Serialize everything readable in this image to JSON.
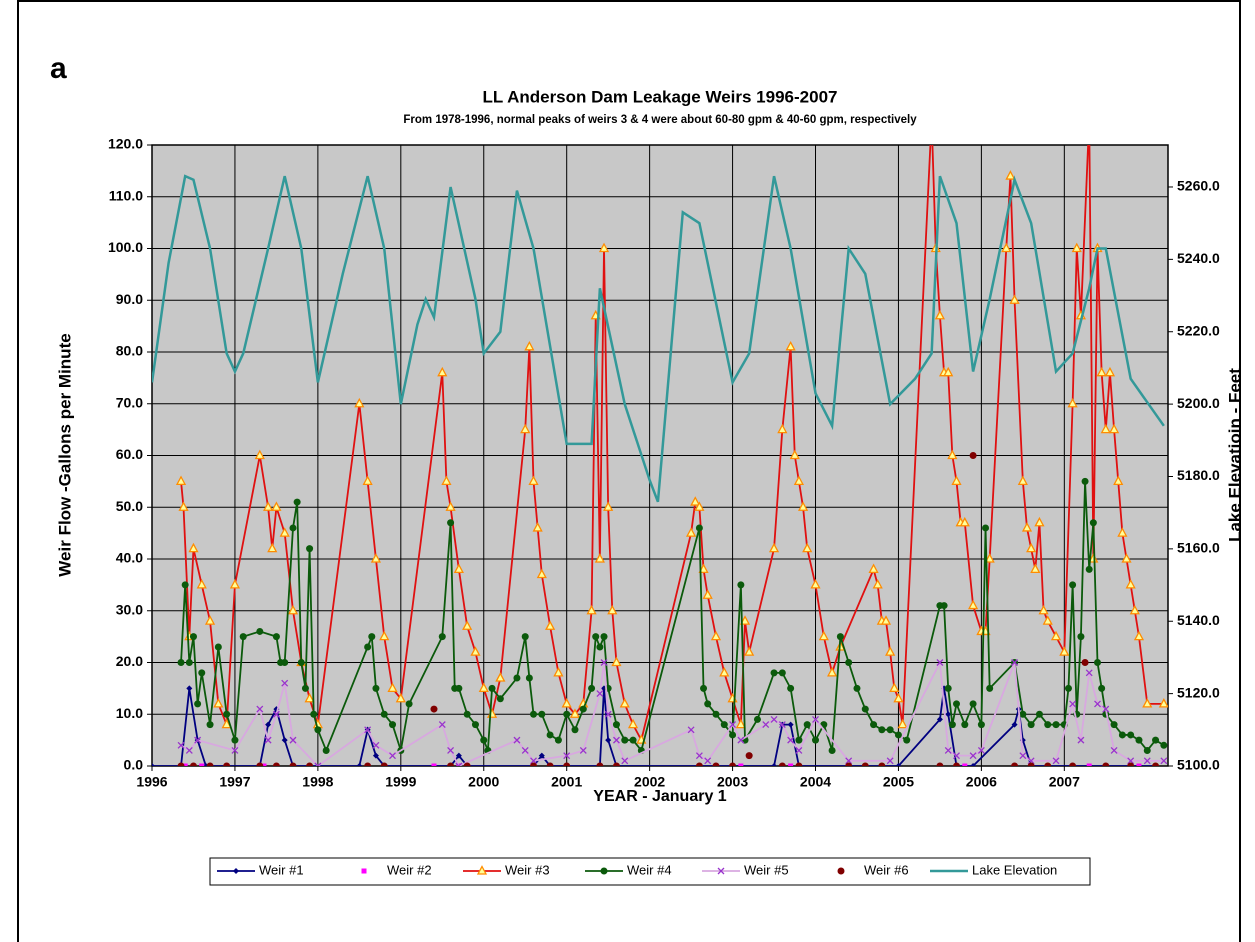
{
  "panel_label": "a",
  "chart_data": {
    "type": "line",
    "title": "LL Anderson Dam Leakage Weirs 1996-2007",
    "subtitle": "From 1978-1996, normal peaks of weirs 3 & 4 were about 60-80 gpm & 40-60 gpm, respectively",
    "x_label": "YEAR - January 1",
    "y_label": "Weir Flow -Gallons per Minute",
    "y2_label": "Lake Elevatioin - Feet",
    "xlim": [
      1996,
      2008.25
    ],
    "xticks": [
      1996,
      1997,
      1998,
      1999,
      2000,
      2001,
      2002,
      2003,
      2004,
      2005,
      2006,
      2007
    ],
    "ylim": [
      0,
      120
    ],
    "yticks": [
      {
        "value": 0,
        "label": "0.0"
      },
      {
        "value": 10,
        "label": "10.0"
      },
      {
        "value": 20,
        "label": "20.0"
      },
      {
        "value": 30,
        "label": "30.0"
      },
      {
        "value": 40,
        "label": "40.0"
      },
      {
        "value": 50,
        "label": "50.0"
      },
      {
        "value": 60,
        "label": "60.0"
      },
      {
        "value": 70,
        "label": "70.0"
      },
      {
        "value": 80,
        "label": "80.0"
      },
      {
        "value": 90,
        "label": "90.0"
      },
      {
        "value": 100,
        "label": "100.0"
      },
      {
        "value": 110,
        "label": "110.0"
      },
      {
        "value": 120,
        "label": "120.0"
      }
    ],
    "y2lim": [
      5100,
      5271.6
    ],
    "y2ticks": [
      {
        "value": 5100,
        "label": "5100.0"
      },
      {
        "value": 5120,
        "label": "5120.0"
      },
      {
        "value": 5140,
        "label": "5140.0"
      },
      {
        "value": 5160,
        "label": "5160.0"
      },
      {
        "value": 5180,
        "label": "5180.0"
      },
      {
        "value": 5200,
        "label": "5200.0"
      },
      {
        "value": 5220,
        "label": "5220.0"
      },
      {
        "value": 5240,
        "label": "5240.0"
      },
      {
        "value": 5260,
        "label": "5260.0"
      }
    ],
    "grid": true,
    "legend": "bottom",
    "series": [
      {
        "name": "Weir #1",
        "color": "#000080",
        "marker": "diamond",
        "line": true,
        "x": [
          1996.0,
          1996.35,
          1996.45,
          1996.55,
          1996.65,
          1997.3,
          1997.4,
          1997.5,
          1997.6,
          1997.7,
          1998.5,
          1998.6,
          1998.7,
          1998.8,
          1999.6,
          1999.7,
          1999.8,
          2000.6,
          2000.7,
          2000.8,
          2001.4,
          2001.45,
          2001.5,
          2001.6,
          2003.5,
          2003.6,
          2003.7,
          2003.8,
          2005.0,
          2005.5,
          2005.55,
          2005.6,
          2005.7,
          2005.9,
          2006.4,
          2006.45,
          2006.5,
          2006.6,
          2008.1
        ],
        "values": [
          0,
          0,
          15,
          5,
          0,
          0,
          8,
          11,
          5,
          0,
          0,
          7,
          2,
          0,
          0,
          2,
          0,
          0,
          2,
          0,
          0,
          15,
          5,
          0,
          0,
          8,
          8,
          0,
          0,
          9,
          15,
          10,
          0,
          0,
          8,
          11,
          5,
          0,
          0
        ]
      },
      {
        "name": "Weir #2",
        "color": "#ff00ff",
        "marker": "square",
        "line": false,
        "x": [
          1996.4,
          1996.6,
          1997.35,
          1998.6,
          1999.4,
          1999.7,
          2000.6,
          2001.4,
          2002.6,
          2003.1,
          2003.7,
          2004.6,
          2005.5,
          2005.8,
          2006.4,
          2006.8,
          2007.3,
          2007.9
        ],
        "values": [
          0,
          0,
          0,
          0,
          0,
          0,
          0,
          0,
          0,
          0,
          0,
          0,
          0,
          0,
          0,
          0,
          0,
          0
        ]
      },
      {
        "name": "Weir #3",
        "color": "#e01010",
        "marker_color": "#ff8c00",
        "marker": "triangle",
        "line": true,
        "x": [
          1996.35,
          1996.38,
          1996.45,
          1996.5,
          1996.6,
          1996.7,
          1996.8,
          1996.9,
          1997.0,
          1997.3,
          1997.4,
          1997.45,
          1997.5,
          1997.6,
          1997.7,
          1997.8,
          1997.9,
          1998.0,
          1998.5,
          1998.6,
          1998.7,
          1998.8,
          1998.9,
          1999.0,
          1999.5,
          1999.55,
          1999.6,
          1999.7,
          1999.8,
          1999.9,
          2000.0,
          2000.1,
          2000.2,
          2000.5,
          2000.55,
          2000.6,
          2000.65,
          2000.7,
          2000.8,
          2000.9,
          2001.0,
          2001.1,
          2001.2,
          2001.3,
          2001.35,
          2001.4,
          2001.45,
          2001.5,
          2001.55,
          2001.6,
          2001.7,
          2001.8,
          2001.9,
          2002.5,
          2002.55,
          2002.6,
          2002.65,
          2002.7,
          2002.8,
          2002.9,
          2003.0,
          2003.1,
          2003.15,
          2003.2,
          2003.5,
          2003.6,
          2003.7,
          2003.75,
          2003.8,
          2003.85,
          2003.9,
          2004.0,
          2004.1,
          2004.2,
          2004.3,
          2004.7,
          2004.75,
          2004.8,
          2004.85,
          2004.9,
          2004.95,
          2005.0,
          2005.05,
          2005.4,
          2005.45,
          2005.5,
          2005.55,
          2005.6,
          2005.65,
          2005.7,
          2005.75,
          2005.8,
          2005.9,
          2006.0,
          2006.05,
          2006.1,
          2006.3,
          2006.35,
          2006.4,
          2006.5,
          2006.55,
          2006.6,
          2006.65,
          2006.7,
          2006.75,
          2006.8,
          2006.9,
          2007.0,
          2007.1,
          2007.15,
          2007.2,
          2007.3,
          2007.35,
          2007.4,
          2007.45,
          2007.5,
          2007.55,
          2007.6,
          2007.65,
          2007.7,
          2007.75,
          2007.8,
          2007.85,
          2007.9,
          2008.0,
          2008.2
        ],
        "values": [
          55,
          50,
          25,
          42,
          35,
          28,
          12,
          8,
          35,
          60,
          50,
          42,
          50,
          45,
          30,
          20,
          13,
          8,
          70,
          55,
          40,
          25,
          15,
          13,
          76,
          55,
          50,
          38,
          27,
          22,
          15,
          10,
          17,
          65,
          81,
          55,
          46,
          37,
          27,
          18,
          12,
          10,
          12,
          30,
          87,
          40,
          100,
          50,
          30,
          20,
          12,
          8,
          5,
          45,
          51,
          50,
          38,
          33,
          25,
          18,
          13,
          8,
          28,
          22,
          42,
          65,
          81,
          60,
          55,
          50,
          42,
          35,
          25,
          18,
          23,
          38,
          35,
          28,
          28,
          22,
          15,
          13,
          8,
          125,
          100,
          87,
          76,
          76,
          60,
          55,
          47,
          47,
          31,
          26,
          26,
          40,
          100,
          114,
          90,
          55,
          46,
          42,
          38,
          47,
          30,
          28,
          25,
          22,
          70,
          100,
          87,
          125,
          40,
          100,
          76,
          65,
          76,
          65,
          55,
          45,
          40,
          35,
          30,
          25,
          12,
          12
        ]
      },
      {
        "name": "Weir #4",
        "color": "#0b5a0b",
        "marker": "circle",
        "line": true,
        "x": [
          1996.35,
          1996.4,
          1996.45,
          1996.5,
          1996.55,
          1996.6,
          1996.7,
          1996.8,
          1996.9,
          1997.0,
          1997.1,
          1997.3,
          1997.5,
          1997.55,
          1997.6,
          1997.7,
          1997.75,
          1997.8,
          1997.85,
          1997.9,
          1997.95,
          1998.0,
          1998.1,
          1998.6,
          1998.65,
          1998.7,
          1998.8,
          1998.9,
          1999.0,
          1999.1,
          1999.5,
          1999.6,
          1999.65,
          1999.7,
          1999.8,
          1999.9,
          2000.0,
          2000.05,
          2000.1,
          2000.2,
          2000.4,
          2000.5,
          2000.55,
          2000.6,
          2000.7,
          2000.8,
          2000.9,
          2001.0,
          2001.1,
          2001.2,
          2001.3,
          2001.35,
          2001.4,
          2001.45,
          2001.5,
          2001.6,
          2001.7,
          2001.8,
          2001.9,
          2002.6,
          2002.65,
          2002.7,
          2002.8,
          2002.9,
          2003.0,
          2003.1,
          2003.15,
          2003.3,
          2003.5,
          2003.6,
          2003.7,
          2003.8,
          2003.9,
          2004.0,
          2004.1,
          2004.2,
          2004.3,
          2004.4,
          2004.5,
          2004.6,
          2004.7,
          2004.8,
          2004.9,
          2005.0,
          2005.1,
          2005.5,
          2005.55,
          2005.6,
          2005.65,
          2005.7,
          2005.8,
          2005.9,
          2006.0,
          2006.05,
          2006.1,
          2006.4,
          2006.5,
          2006.6,
          2006.7,
          2006.8,
          2006.9,
          2007.0,
          2007.05,
          2007.1,
          2007.15,
          2007.2,
          2007.25,
          2007.3,
          2007.35,
          2007.4,
          2007.45,
          2007.5,
          2007.6,
          2007.7,
          2007.8,
          2007.9,
          2008.0,
          2008.1,
          2008.2
        ],
        "values": [
          20,
          35,
          20,
          25,
          12,
          18,
          8,
          23,
          10,
          5,
          25,
          26,
          25,
          20,
          20,
          46,
          51,
          20,
          15,
          42,
          10,
          7,
          3,
          23,
          25,
          15,
          10,
          8,
          3,
          12,
          25,
          47,
          15,
          15,
          10,
          8,
          5,
          3,
          15,
          13,
          17,
          25,
          17,
          10,
          10,
          6,
          5,
          10,
          7,
          11,
          15,
          25,
          23,
          25,
          15,
          8,
          5,
          5,
          3,
          46,
          15,
          12,
          10,
          8,
          6,
          35,
          5,
          9,
          18,
          18,
          15,
          5,
          8,
          5,
          8,
          3,
          25,
          20,
          15,
          11,
          8,
          7,
          7,
          6,
          5,
          31,
          31,
          15,
          8,
          12,
          8,
          12,
          8,
          46,
          15,
          20,
          10,
          8,
          10,
          8,
          8,
          8,
          15,
          35,
          10,
          25,
          55,
          38,
          47,
          20,
          15,
          10,
          8,
          6,
          6,
          5,
          3,
          5,
          4
        ]
      },
      {
        "name": "Weir #5",
        "color": "#d8a8e0",
        "marker_color": "#9933cc",
        "marker": "x",
        "line": true,
        "x": [
          1996.35,
          1996.45,
          1996.55,
          1997.0,
          1997.3,
          1997.4,
          1997.5,
          1997.6,
          1997.7,
          1998.0,
          1998.6,
          1998.7,
          1998.9,
          1999.5,
          1999.6,
          1999.7,
          2000.4,
          2000.5,
          2000.6,
          2001.0,
          2001.2,
          2001.4,
          2001.45,
          2001.5,
          2001.6,
          2001.7,
          2002.5,
          2002.6,
          2002.7,
          2003.0,
          2003.1,
          2003.4,
          2003.5,
          2003.6,
          2003.7,
          2003.8,
          2004.0,
          2004.4,
          2004.9,
          2005.5,
          2005.6,
          2005.7,
          2005.9,
          2006.0,
          2006.4,
          2006.5,
          2006.6,
          2006.9,
          2007.1,
          2007.2,
          2007.3,
          2007.4,
          2007.5,
          2007.6,
          2007.8,
          2008.0,
          2008.2
        ],
        "values": [
          4,
          3,
          5,
          3,
          11,
          5,
          10,
          16,
          5,
          0,
          7,
          4,
          2,
          8,
          3,
          0,
          5,
          3,
          1,
          2,
          3,
          14,
          20,
          10,
          5,
          1,
          7,
          2,
          1,
          8,
          5,
          8,
          9,
          8,
          5,
          3,
          9,
          1,
          1,
          20,
          3,
          2,
          2,
          3,
          20,
          2,
          1,
          1,
          12,
          5,
          18,
          12,
          11,
          3,
          1,
          1,
          1
        ]
      },
      {
        "name": "Weir #6",
        "color": "#800000",
        "marker": "circle",
        "line": false,
        "x": [
          1996.35,
          1996.5,
          1996.7,
          1996.9,
          1997.3,
          1997.5,
          1997.7,
          1997.9,
          1998.6,
          1998.8,
          1999.4,
          1999.6,
          1999.8,
          2000.6,
          2000.8,
          2001.0,
          2001.4,
          2001.6,
          2002.6,
          2002.8,
          2003.0,
          2003.2,
          2003.6,
          2003.8,
          2004.4,
          2004.6,
          2004.8,
          2005.5,
          2005.7,
          2005.9,
          2006.4,
          2006.6,
          2006.8,
          2007.1,
          2007.25,
          2007.5,
          2007.8,
          2008.1
        ],
        "values": [
          0,
          0,
          0,
          0,
          0,
          0,
          0,
          0,
          0,
          0,
          11,
          0,
          0,
          0,
          0,
          0,
          0,
          0,
          0,
          0,
          0,
          2,
          0,
          0,
          0,
          0,
          0,
          0,
          0,
          60,
          0,
          0,
          0,
          0,
          20,
          0,
          0,
          0
        ]
      },
      {
        "name": "Lake Elevation",
        "color": "#339999",
        "marker": "none",
        "line": true,
        "axis": "y2",
        "x": [
          1996.0,
          1996.2,
          1996.4,
          1996.5,
          1996.7,
          1996.9,
          1997.0,
          1997.1,
          1997.4,
          1997.6,
          1997.8,
          1998.0,
          1998.3,
          1998.6,
          1998.8,
          1999.0,
          1999.2,
          1999.3,
          1999.4,
          1999.6,
          1999.9,
          2000.0,
          2000.2,
          2000.4,
          2000.6,
          2001.0,
          2001.3,
          2001.4,
          2001.7,
          2002.0,
          2002.1,
          2002.4,
          2002.6,
          2003.0,
          2003.2,
          2003.5,
          2003.7,
          2004.0,
          2004.2,
          2004.4,
          2004.6,
          2004.9,
          2005.2,
          2005.4,
          2005.5,
          2005.7,
          2005.9,
          2006.1,
          2006.4,
          2006.6,
          2006.9,
          2007.1,
          2007.3,
          2007.4,
          2007.5,
          2007.8,
          2008.2
        ],
        "values": [
          5206,
          5239,
          5263,
          5262,
          5243,
          5214,
          5209,
          5214,
          5243,
          5263,
          5243,
          5206,
          5236,
          5263,
          5243,
          5200,
          5222,
          5229,
          5224,
          5260,
          5229,
          5214,
          5220,
          5259,
          5243,
          5189,
          5189,
          5232,
          5200,
          5179,
          5173,
          5253,
          5250,
          5206,
          5214,
          5263,
          5243,
          5203,
          5194,
          5243,
          5236,
          5200,
          5207,
          5214,
          5263,
          5250,
          5209,
          5229,
          5262,
          5250,
          5209,
          5214,
          5232,
          5243,
          5243,
          5207,
          5194
        ]
      }
    ]
  }
}
